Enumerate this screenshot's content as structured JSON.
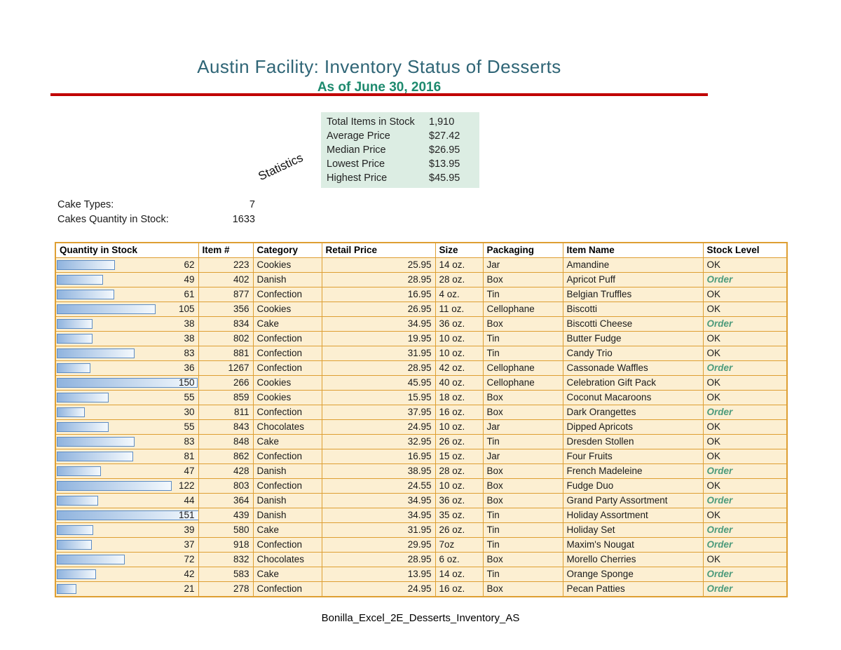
{
  "page": {
    "title": "Austin Facility: Inventory Status of Desserts",
    "subtitle": "As of June 30, 2016",
    "footer": "Bonilla_Excel_2E_Desserts_Inventory_AS"
  },
  "statistics": {
    "callout_label": "Statistics",
    "rows": [
      {
        "label": "Total Items in Stock",
        "value": "1,910"
      },
      {
        "label": "Average Price",
        "value": "$27.42"
      },
      {
        "label": "Median Price",
        "value": "$26.95"
      },
      {
        "label": "Lowest Price",
        "value": "$13.95"
      },
      {
        "label": "Highest Price",
        "value": "$45.95"
      }
    ]
  },
  "summary": {
    "rows": [
      {
        "label": "Cake Types:",
        "value": "7"
      },
      {
        "label": "Cakes Quantity in Stock:",
        "value": "1633"
      }
    ]
  },
  "table": {
    "columns": [
      "Quantity in Stock",
      "Item #",
      "Category",
      "Retail Price",
      "Size",
      "Packaging",
      "Item Name",
      "Stock Level"
    ],
    "max_quantity": 151,
    "rows": [
      {
        "qty": 62,
        "item": "223",
        "category": "Cookies",
        "price": "25.95",
        "size": "14 oz.",
        "packaging": "Jar",
        "name": "Amandine",
        "stock": "OK"
      },
      {
        "qty": 49,
        "item": "402",
        "category": "Danish",
        "price": "28.95",
        "size": "28 oz.",
        "packaging": "Box",
        "name": "Apricot Puff",
        "stock": "Order"
      },
      {
        "qty": 61,
        "item": "877",
        "category": "Confection",
        "price": "16.95",
        "size": "4 oz.",
        "packaging": "Tin",
        "name": "Belgian Truffles",
        "stock": "OK"
      },
      {
        "qty": 105,
        "item": "356",
        "category": "Cookies",
        "price": "26.95",
        "size": "11 oz.",
        "packaging": "Cellophane",
        "name": "Biscotti",
        "stock": "OK"
      },
      {
        "qty": 38,
        "item": "834",
        "category": "Cake",
        "price": "34.95",
        "size": "36 oz.",
        "packaging": "Box",
        "name": "Biscotti Cheese",
        "stock": "Order"
      },
      {
        "qty": 38,
        "item": "802",
        "category": "Confection",
        "price": "19.95",
        "size": "10 oz.",
        "packaging": "Tin",
        "name": "Butter Fudge",
        "stock": "OK"
      },
      {
        "qty": 83,
        "item": "881",
        "category": "Confection",
        "price": "31.95",
        "size": "10 oz.",
        "packaging": "Tin",
        "name": "Candy Trio",
        "stock": "OK"
      },
      {
        "qty": 36,
        "item": "1267",
        "category": "Confection",
        "price": "28.95",
        "size": "42 oz.",
        "packaging": "Cellophane",
        "name": "Cassonade Waffles",
        "stock": "Order"
      },
      {
        "qty": 150,
        "item": "266",
        "category": "Cookies",
        "price": "45.95",
        "size": "40 oz.",
        "packaging": "Cellophane",
        "name": "Celebration Gift Pack",
        "stock": "OK"
      },
      {
        "qty": 55,
        "item": "859",
        "category": "Cookies",
        "price": "15.95",
        "size": "18 oz.",
        "packaging": "Box",
        "name": "Coconut Macaroons",
        "stock": "OK"
      },
      {
        "qty": 30,
        "item": "811",
        "category": "Confection",
        "price": "37.95",
        "size": "16 oz.",
        "packaging": "Box",
        "name": "Dark Orangettes",
        "stock": "Order"
      },
      {
        "qty": 55,
        "item": "843",
        "category": "Chocolates",
        "price": "24.95",
        "size": "10 oz.",
        "packaging": "Jar",
        "name": "Dipped Apricots",
        "stock": "OK"
      },
      {
        "qty": 83,
        "item": "848",
        "category": "Cake",
        "price": "32.95",
        "size": "26 oz.",
        "packaging": "Tin",
        "name": "Dresden Stollen",
        "stock": "OK"
      },
      {
        "qty": 81,
        "item": "862",
        "category": "Confection",
        "price": "16.95",
        "size": "15 oz.",
        "packaging": "Jar",
        "name": "Four Fruits",
        "stock": "OK"
      },
      {
        "qty": 47,
        "item": "428",
        "category": "Danish",
        "price": "38.95",
        "size": "28 oz.",
        "packaging": "Box",
        "name": "French Madeleine",
        "stock": "Order"
      },
      {
        "qty": 122,
        "item": "803",
        "category": "Confection",
        "price": "24.55",
        "size": "10 oz.",
        "packaging": "Box",
        "name": "Fudge Duo",
        "stock": "OK"
      },
      {
        "qty": 44,
        "item": "364",
        "category": "Danish",
        "price": "34.95",
        "size": "36 oz.",
        "packaging": "Box",
        "name": "Grand Party Assortment",
        "stock": "Order"
      },
      {
        "qty": 151,
        "item": "439",
        "category": "Danish",
        "price": "34.95",
        "size": "35 oz.",
        "packaging": "Tin",
        "name": "Holiday Assortment",
        "stock": "OK"
      },
      {
        "qty": 39,
        "item": "580",
        "category": "Cake",
        "price": "31.95",
        "size": "26 oz.",
        "packaging": "Tin",
        "name": "Holiday Set",
        "stock": "Order"
      },
      {
        "qty": 37,
        "item": "918",
        "category": "Confection",
        "price": "29.95",
        "size": "7oz",
        "packaging": "Tin",
        "name": "Maxim's Nougat",
        "stock": "Order"
      },
      {
        "qty": 72,
        "item": "832",
        "category": "Chocolates",
        "price": "28.95",
        "size": "6 oz.",
        "packaging": "Box",
        "name": "Morello Cherries",
        "stock": "OK"
      },
      {
        "qty": 42,
        "item": "583",
        "category": "Cake",
        "price": "13.95",
        "size": "14 oz.",
        "packaging": "Tin",
        "name": "Orange Sponge",
        "stock": "Order"
      },
      {
        "qty": 21,
        "item": "278",
        "category": "Confection",
        "price": "24.95",
        "size": "16 oz.",
        "packaging": "Box",
        "name": "Pecan Patties",
        "stock": "Order"
      }
    ]
  },
  "colors": {
    "title_color": "#2F6576",
    "subtitle_color": "#1E8A6E",
    "rule_color": "#C00000",
    "stats_bg": "#DCEDE3",
    "table_border": "#DE9F33",
    "row_fill": "#FCEFD2",
    "databar_border": "#5C8CC5",
    "databar_from": "#8FB3DE",
    "databar_to": "#F4F9FD",
    "order_color": "#4D9B7C",
    "text_color": "#1A1A1A"
  }
}
